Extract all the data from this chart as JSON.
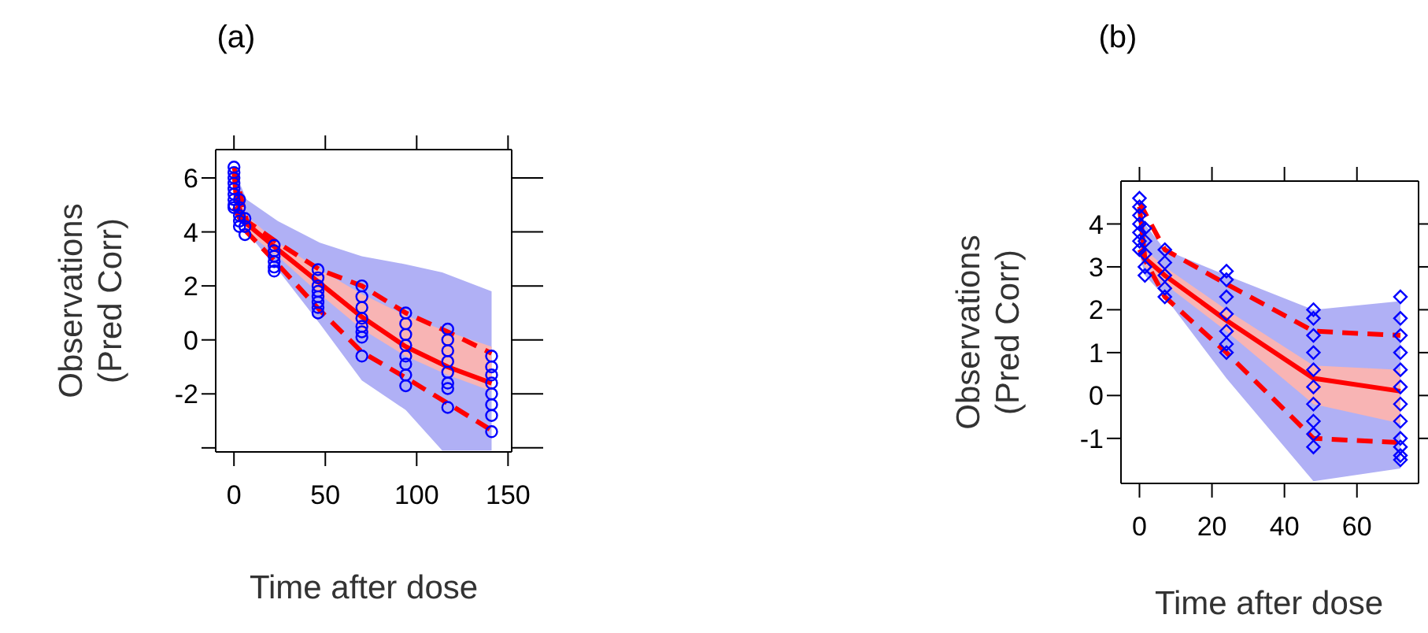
{
  "chart_data": [
    {
      "type": "scatter",
      "title": "(a)",
      "xlabel": "Time after dose",
      "ylabel": "Observations\n(Pred Corr)",
      "xlim": [
        -10,
        152
      ],
      "xticks": [
        0,
        50,
        100,
        150
      ],
      "ylim": [
        -4.15,
        7.05
      ],
      "yticks": [
        {
          "value": -4,
          "label": null
        },
        -2,
        0,
        2,
        4,
        6
      ],
      "series": [
        {
          "type": "line",
          "color": "#b0b0f5",
          "x": [
            0,
            7,
            24,
            47,
            70,
            94,
            114,
            141
          ],
          "values": [
            null,
            null,
            null,
            null,
            null,
            null,
            null,
            null
          ],
          "lower": [
            5.8,
            4.0,
            2.6,
            0.6,
            -1.5,
            -2.6,
            -4.1,
            -4.1
          ],
          "upper": [
            6.3,
            5.2,
            4.4,
            3.6,
            3.1,
            2.8,
            2.5,
            1.8
          ]
        },
        {
          "type": "line",
          "color": "#f8b4b4",
          "x": [
            0,
            7,
            24,
            47,
            70,
            94,
            117,
            141
          ],
          "values": [
            null,
            null,
            null,
            null,
            null,
            null,
            null,
            null
          ],
          "lower": [
            6.0,
            4.0,
            3.1,
            1.7,
            0.4,
            -0.6,
            -1.3,
            -1.9
          ],
          "upper": [
            6.3,
            4.6,
            3.6,
            2.6,
            1.7,
            0.9,
            0.3,
            -0.25
          ]
        },
        {
          "type": "scatter",
          "marker": "circle",
          "color": "#0000ff",
          "x": [
            0,
            0,
            0,
            0,
            0,
            0,
            0,
            0,
            0,
            3,
            3,
            3,
            3,
            3,
            6,
            6,
            6,
            22,
            22,
            22,
            22,
            22,
            22,
            46,
            46,
            46,
            46,
            46,
            46,
            46,
            46,
            70,
            70,
            70,
            70,
            70,
            70,
            70,
            70,
            94,
            94,
            94,
            94,
            94,
            94,
            94,
            94,
            117,
            117,
            117,
            117,
            117,
            117,
            117,
            117,
            141,
            141,
            141,
            141,
            141,
            141,
            141,
            141
          ],
          "values": [
            6.4,
            6.2,
            6.0,
            5.8,
            5.6,
            5.4,
            5.2,
            5.0,
            4.9,
            5.2,
            4.9,
            4.6,
            4.4,
            4.2,
            4.5,
            4.2,
            3.9,
            3.5,
            3.3,
            3.1,
            2.9,
            2.7,
            2.55,
            2.6,
            2.3,
            2.0,
            1.8,
            1.6,
            1.4,
            1.2,
            1.0,
            2.0,
            1.6,
            1.2,
            0.8,
            0.5,
            0.3,
            0.1,
            -0.6,
            1.0,
            0.6,
            0.2,
            -0.2,
            -0.6,
            -0.9,
            -1.3,
            -1.7,
            0.4,
            0.0,
            -0.4,
            -0.8,
            -1.2,
            -1.6,
            -1.8,
            -2.5,
            -0.6,
            -1.0,
            -1.3,
            -1.6,
            -2.0,
            -2.4,
            -2.8,
            -3.4
          ]
        },
        {
          "type": "line",
          "color": "#ff0000",
          "line_style": "dashed",
          "marker": "none",
          "x": [
            0,
            7,
            24,
            47,
            70,
            94,
            117,
            141
          ],
          "values": [
            6.4,
            4.4,
            3.6,
            2.6,
            2.0,
            1.0,
            0.3,
            -0.5
          ]
        },
        {
          "type": "line",
          "color": "#ff0000",
          "line_style": "dashed",
          "marker": "none",
          "x": [
            0,
            7,
            24,
            47,
            70,
            94,
            117,
            141
          ],
          "values": [
            4.9,
            4.0,
            2.8,
            1.1,
            -0.45,
            -1.4,
            -2.35,
            -3.35
          ]
        },
        {
          "type": "line",
          "color": "#ff0000",
          "line_style": "solid",
          "marker": "none",
          "x": [
            0,
            1.4,
            7,
            24,
            47,
            70,
            94,
            117,
            141
          ],
          "values": [
            6.2,
            5.1,
            4.3,
            3.35,
            2.1,
            0.85,
            -0.25,
            -1.0,
            -1.6
          ]
        }
      ]
    },
    {
      "type": "scatter",
      "title": "(b)",
      "xlabel": "Time after dose",
      "ylabel": "Observations\n(Pred Corr)",
      "xlim": [
        -5.1,
        77
      ],
      "xticks": [
        0,
        20,
        40,
        60
      ],
      "ylim": [
        -2.05,
        5.0
      ],
      "yticks": [
        -1,
        0,
        1,
        2,
        3,
        4
      ],
      "series": [
        {
          "type": "line",
          "color": "#b0b0f5",
          "x": [
            0,
            1.5,
            7,
            24,
            48,
            72
          ],
          "values": [
            null,
            null,
            null,
            null,
            null,
            null
          ],
          "lower": [
            3.3,
            2.8,
            2.3,
            0.4,
            -2.0,
            -1.7
          ],
          "upper": [
            4.6,
            4.0,
            3.4,
            2.8,
            2.0,
            2.2
          ]
        },
        {
          "type": "line",
          "color": "#f8b4b4",
          "x": [
            0,
            1.5,
            7,
            24,
            48,
            72
          ],
          "values": [
            null,
            null,
            null,
            null,
            null,
            null
          ],
          "lower": [
            4.3,
            3.0,
            2.6,
            1.5,
            -0.2,
            -0.65
          ],
          "upper": [
            4.5,
            3.4,
            3.0,
            2.0,
            0.7,
            0.6
          ]
        },
        {
          "type": "scatter",
          "marker": "diamond",
          "color": "#0000ff",
          "x": [
            0,
            0,
            0,
            0,
            0,
            0,
            0,
            1.5,
            1.5,
            1.5,
            1.5,
            1.5,
            7,
            7,
            7,
            7,
            7,
            24,
            24,
            24,
            24,
            24,
            24,
            24,
            48,
            48,
            48,
            48,
            48,
            48,
            48,
            48,
            48,
            48,
            72,
            72,
            72,
            72,
            72,
            72,
            72,
            72,
            72,
            72,
            72,
            72
          ],
          "values": [
            4.6,
            4.4,
            4.2,
            4.0,
            3.8,
            3.6,
            3.4,
            3.9,
            3.6,
            3.3,
            3.0,
            2.8,
            3.4,
            3.1,
            2.8,
            2.5,
            2.3,
            2.9,
            2.7,
            2.3,
            1.9,
            1.5,
            1.2,
            1.0,
            2.0,
            1.8,
            1.4,
            1.0,
            0.6,
            0.2,
            -0.2,
            -0.6,
            -0.9,
            -1.2,
            2.3,
            1.8,
            1.4,
            1.0,
            0.6,
            0.2,
            -0.2,
            -0.6,
            -1.0,
            -1.2,
            -1.4,
            -1.5
          ]
        },
        {
          "type": "line",
          "color": "#ff0000",
          "line_style": "dashed",
          "marker": "none",
          "x": [
            0,
            7,
            24,
            48,
            72
          ],
          "values": [
            4.5,
            3.4,
            2.6,
            1.5,
            1.4
          ]
        },
        {
          "type": "line",
          "color": "#ff0000",
          "line_style": "dashed",
          "marker": "none",
          "x": [
            0,
            7,
            24,
            48,
            72
          ],
          "values": [
            3.4,
            2.3,
            1.0,
            -1.0,
            -1.1
          ]
        },
        {
          "type": "line",
          "color": "#ff0000",
          "line_style": "solid",
          "marker": "none",
          "x": [
            0,
            1.5,
            7,
            24,
            48,
            72
          ],
          "values": [
            4.4,
            3.2,
            2.8,
            1.75,
            0.4,
            0.1
          ]
        }
      ]
    }
  ]
}
